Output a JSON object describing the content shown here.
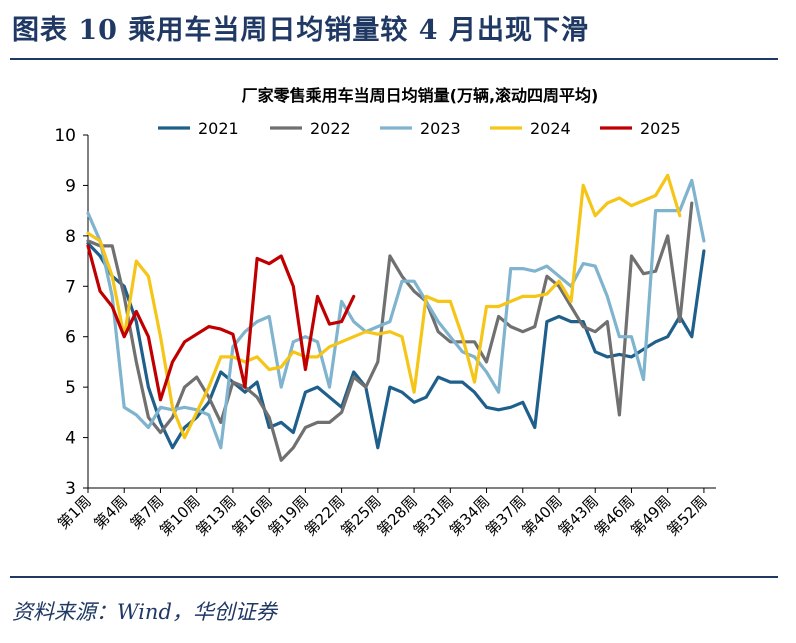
{
  "figure_title": "图表 10  乘用车当周日均销量较 4 月出现下滑",
  "source": "资料来源：Wind，华创证券",
  "chart_data": {
    "type": "line",
    "title": "厂家零售乘用车当周日均销量(万辆,滚动四周平均)",
    "xlabel": "",
    "ylabel": "",
    "ylim": [
      3,
      10
    ],
    "yticks": [
      3,
      4,
      5,
      6,
      7,
      8,
      9,
      10
    ],
    "x": [
      1,
      2,
      3,
      4,
      5,
      6,
      7,
      8,
      9,
      10,
      11,
      12,
      13,
      14,
      15,
      16,
      17,
      18,
      19,
      20,
      21,
      22,
      23,
      24,
      25,
      26,
      27,
      28,
      29,
      30,
      31,
      32,
      33,
      34,
      35,
      36,
      37,
      38,
      39,
      40,
      41,
      42,
      43,
      44,
      45,
      46,
      47,
      48,
      49,
      50,
      51,
      52,
      53
    ],
    "x_tick_labels": [
      "第1周",
      "第4周",
      "第7周",
      "第10周",
      "第13周",
      "第16周",
      "第19周",
      "第22周",
      "第25周",
      "第28周",
      "第31周",
      "第34周",
      "第37周",
      "第40周",
      "第43周",
      "第46周",
      "第49周",
      "第52周"
    ],
    "legend_position": "top",
    "grid": false,
    "series": [
      {
        "name": "2021",
        "color": "#1f5f8b",
        "values": [
          7.85,
          7.6,
          7.2,
          7.0,
          6.3,
          5.0,
          4.3,
          3.8,
          4.2,
          4.4,
          4.7,
          5.3,
          5.1,
          4.9,
          5.1,
          4.2,
          4.3,
          4.1,
          4.9,
          5.0,
          4.8,
          4.6,
          5.3,
          5.0,
          3.8,
          5.0,
          4.9,
          4.7,
          4.8,
          5.2,
          5.1,
          5.1,
          4.9,
          4.6,
          4.55,
          4.6,
          4.7,
          4.2,
          6.3,
          6.4,
          6.3,
          6.3,
          5.7,
          5.6,
          5.65,
          5.6,
          5.75,
          5.9,
          6.0,
          6.4,
          6.0,
          7.7,
          null
        ]
      },
      {
        "name": "2022",
        "color": "#707070",
        "values": [
          7.9,
          7.8,
          7.8,
          6.8,
          5.5,
          4.4,
          4.1,
          4.4,
          5.0,
          5.2,
          4.8,
          4.3,
          5.1,
          5.0,
          4.8,
          4.4,
          3.55,
          3.8,
          4.2,
          4.3,
          4.3,
          4.5,
          5.2,
          5.0,
          5.5,
          7.6,
          7.2,
          6.9,
          6.7,
          6.1,
          5.9,
          5.9,
          5.9,
          5.5,
          6.4,
          6.2,
          6.1,
          6.2,
          7.2,
          7.0,
          6.6,
          6.2,
          6.1,
          6.3,
          4.45,
          7.6,
          7.25,
          7.3,
          8.0,
          6.3,
          8.65,
          null,
          null
        ]
      },
      {
        "name": "2023",
        "color": "#7fb3ce",
        "values": [
          8.45,
          7.9,
          6.8,
          4.6,
          4.45,
          4.2,
          4.6,
          4.55,
          4.6,
          4.55,
          4.45,
          3.8,
          5.8,
          6.1,
          6.3,
          6.4,
          5.0,
          5.9,
          6.0,
          5.9,
          5.0,
          6.7,
          6.3,
          6.1,
          6.2,
          6.3,
          7.1,
          7.1,
          6.7,
          6.3,
          6.0,
          5.7,
          5.6,
          5.3,
          4.9,
          7.35,
          7.35,
          7.3,
          7.4,
          7.2,
          7.0,
          7.45,
          7.4,
          6.8,
          6.0,
          6.0,
          5.15,
          8.5,
          8.5,
          8.5,
          9.1,
          7.9,
          null
        ]
      },
      {
        "name": "2024",
        "color": "#f5c518",
        "values": [
          8.05,
          7.9,
          7.2,
          6.0,
          7.5,
          7.2,
          6.0,
          4.6,
          4.0,
          4.5,
          5.0,
          5.6,
          5.6,
          5.5,
          5.6,
          5.35,
          5.4,
          5.7,
          5.6,
          5.6,
          5.8,
          5.9,
          6.0,
          6.1,
          6.05,
          6.1,
          6.0,
          4.9,
          6.8,
          6.7,
          6.7,
          6.0,
          5.1,
          6.6,
          6.6,
          6.7,
          6.8,
          6.8,
          6.85,
          7.1,
          6.7,
          9.0,
          8.4,
          8.65,
          8.75,
          8.6,
          8.7,
          8.8,
          9.2,
          8.4,
          null,
          null,
          null
        ]
      },
      {
        "name": "2025",
        "color": "#c00000",
        "values": [
          7.8,
          6.9,
          6.6,
          6.0,
          6.5,
          6.0,
          4.75,
          5.5,
          5.9,
          6.05,
          6.2,
          6.15,
          6.05,
          5.0,
          7.55,
          7.45,
          7.6,
          7.0,
          5.35,
          6.8,
          6.25,
          6.3,
          6.8,
          null,
          null,
          null,
          null,
          null,
          null,
          null,
          null,
          null,
          null,
          null,
          null,
          null,
          null,
          null,
          null,
          null,
          null,
          null,
          null,
          null,
          null,
          null,
          null,
          null,
          null,
          null,
          null,
          null,
          null
        ]
      }
    ]
  }
}
